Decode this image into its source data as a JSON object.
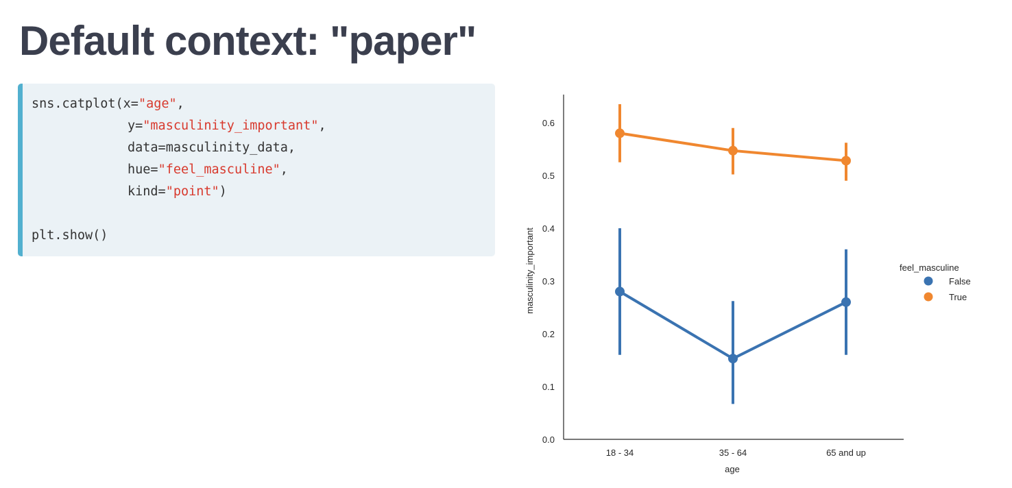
{
  "slide": {
    "title": "Default context: \"paper\""
  },
  "code": {
    "lines": [
      [
        {
          "t": "sns.catplot(x=",
          "s": false
        },
        {
          "t": "\"age\"",
          "s": true
        },
        {
          "t": ",",
          "s": false
        }
      ],
      [
        {
          "t": "y=",
          "s": false
        },
        {
          "t": "\"masculinity_important\"",
          "s": true
        },
        {
          "t": ",",
          "s": false
        }
      ],
      [
        {
          "t": "data=masculinity_data,",
          "s": false
        }
      ],
      [
        {
          "t": "hue=",
          "s": false
        },
        {
          "t": "\"feel_masculine\"",
          "s": true
        },
        {
          "t": ",",
          "s": false
        }
      ],
      [
        {
          "t": "kind=",
          "s": false
        },
        {
          "t": "\"point\"",
          "s": true
        },
        {
          "t": ")",
          "s": false
        }
      ],
      [],
      [
        {
          "t": "plt.show()",
          "s": false
        }
      ]
    ],
    "indented_lines": [
      1,
      2,
      3,
      4
    ],
    "colors": {
      "string": "#d83a2e",
      "text": "#333333",
      "accent": "#52b0cf",
      "background": "#ebf2f6"
    }
  },
  "chart_data": {
    "type": "line",
    "categories": [
      "18 - 34",
      "35 - 64",
      "65 and up"
    ],
    "series": [
      {
        "name": "False",
        "color": "#3a73b1",
        "values": [
          0.28,
          0.153,
          0.26
        ],
        "ci_low": [
          0.16,
          0.067,
          0.16
        ],
        "ci_high": [
          0.4,
          0.262,
          0.36
        ]
      },
      {
        "name": "True",
        "color": "#f0872f",
        "values": [
          0.58,
          0.547,
          0.528
        ],
        "ci_low": [
          0.525,
          0.502,
          0.49
        ],
        "ci_high": [
          0.635,
          0.59,
          0.562
        ]
      }
    ],
    "xlabel": "age",
    "ylabel": "masculinity_important",
    "ylim": [
      0.0,
      0.65
    ],
    "yticks": [
      "0.0",
      "0.1",
      "0.2",
      "0.3",
      "0.4",
      "0.5",
      "0.6"
    ],
    "legend": {
      "title": "feel_masculine",
      "placement": "right"
    },
    "grid": false
  }
}
